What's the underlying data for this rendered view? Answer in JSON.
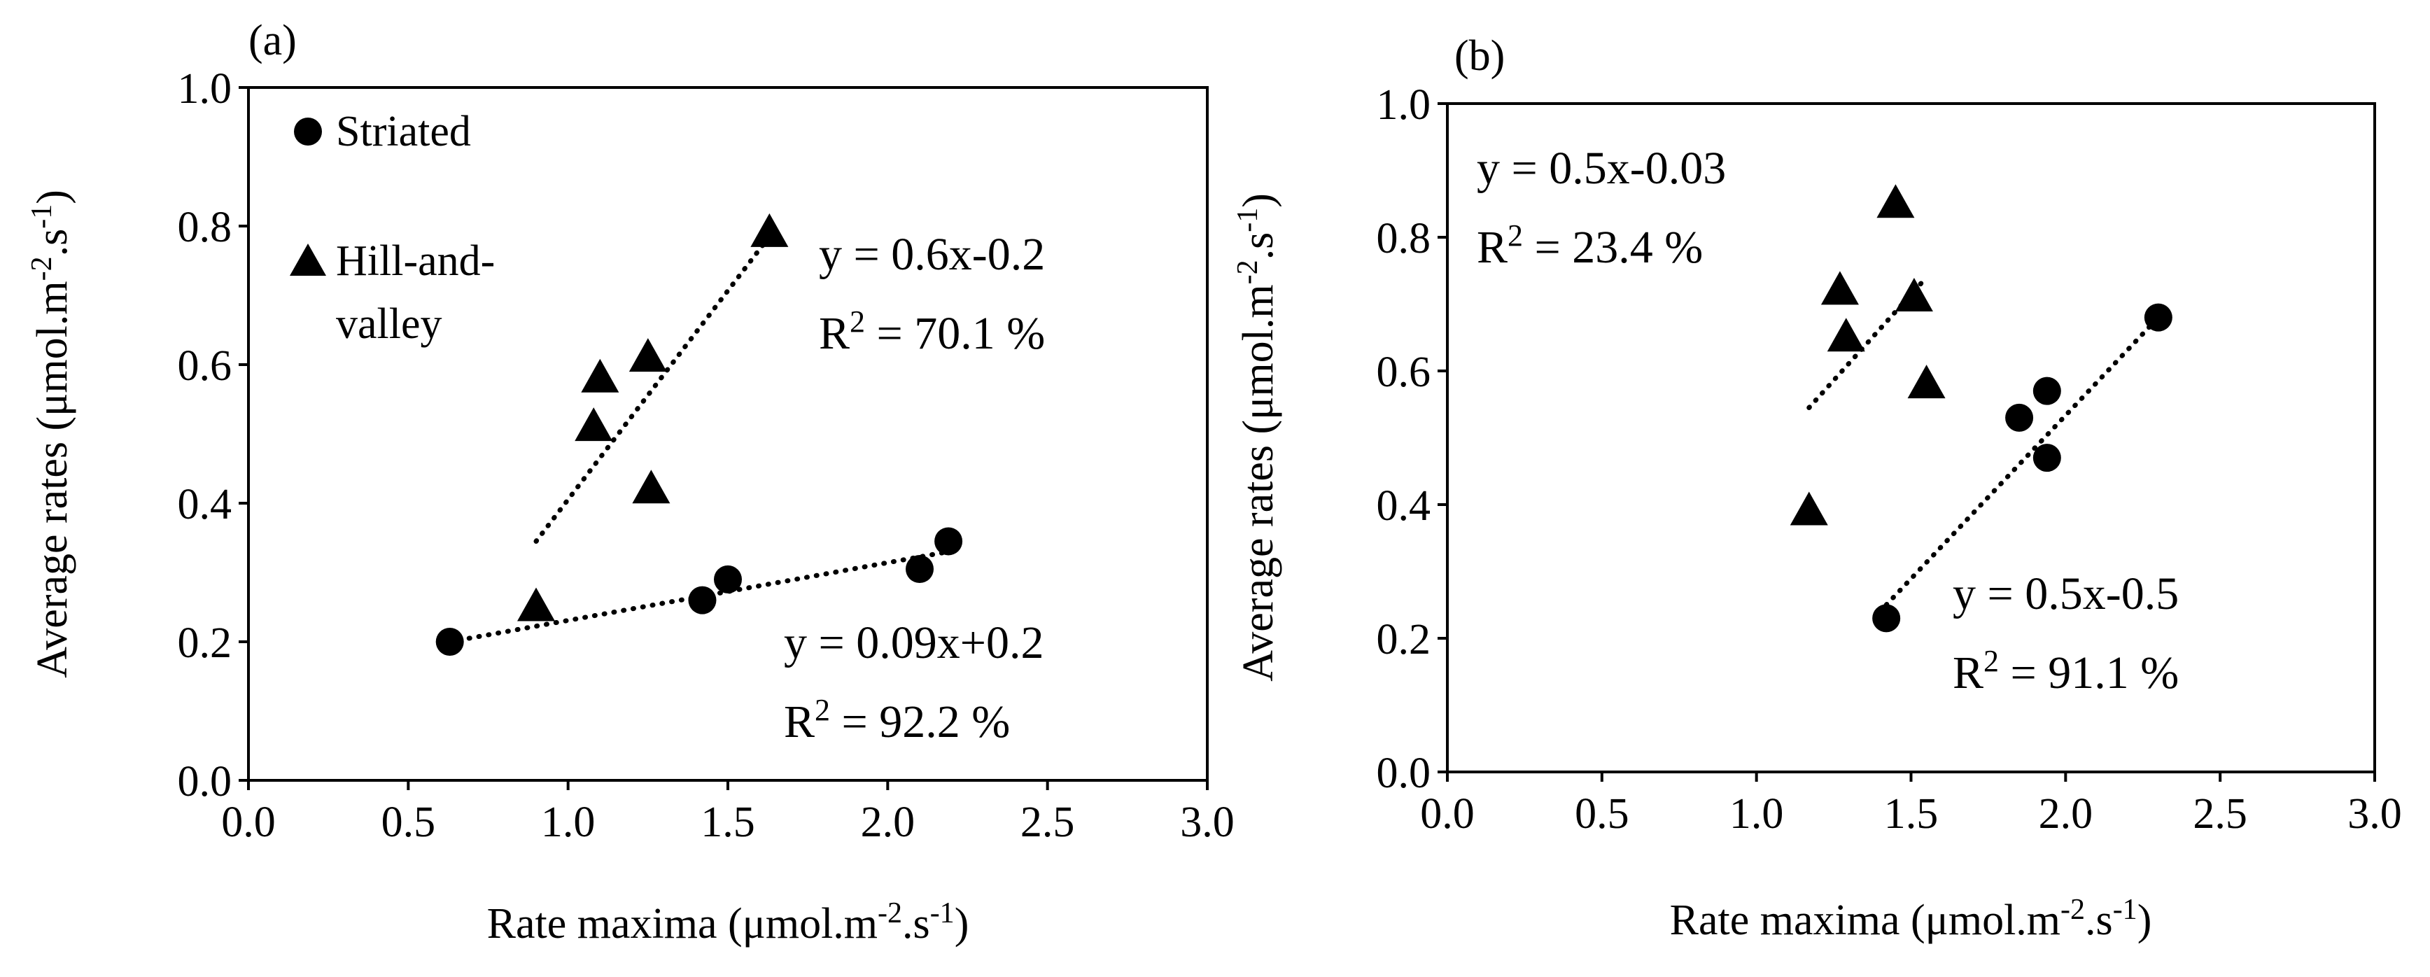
{
  "colors": {
    "ink": "#000000",
    "background": "#ffffff"
  },
  "chart_data": [
    {
      "panel_label": "(a)",
      "type": "scatter",
      "xlabel_main": "Rate maxima (μmol.m",
      "ylabel_main": "Average rates (μmol.m",
      "unit_exp_a": "-2",
      "unit_mid": ".s",
      "unit_exp_b": "-1",
      "unit_close": ")",
      "xlim": [
        0.0,
        3.0
      ],
      "ylim": [
        0.0,
        1.0
      ],
      "xticks": [
        "0.0",
        "0.5",
        "1.0",
        "1.5",
        "2.0",
        "2.5",
        "3.0"
      ],
      "yticks": [
        "0.0",
        "0.2",
        "0.4",
        "0.6",
        "0.8",
        "1.0"
      ],
      "legend": {
        "striated": "Striated",
        "hill_line1": "Hill-and-",
        "hill_line2": "valley"
      },
      "series": [
        {
          "name": "Striated",
          "marker": "circle",
          "points": [
            [
              0.63,
              0.2
            ],
            [
              1.42,
              0.26
            ],
            [
              1.5,
              0.29
            ],
            [
              2.1,
              0.305
            ],
            [
              2.19,
              0.345
            ]
          ],
          "fit": {
            "x": [
              0.63,
              2.19
            ],
            "y": [
              0.2,
              0.33
            ]
          },
          "equation": "y = 0.09x+0.2",
          "r2_prefix": "R",
          "r2_exp": "2",
          "r2_value": " = 92.2 %"
        },
        {
          "name": "Hill-and-valley",
          "marker": "triangle",
          "points": [
            [
              0.9,
              0.25
            ],
            [
              1.08,
              0.51
            ],
            [
              1.1,
              0.58
            ],
            [
              1.25,
              0.61
            ],
            [
              1.26,
              0.42
            ],
            [
              1.63,
              0.79
            ]
          ],
          "fit": {
            "x": [
              0.9,
              1.63
            ],
            "y": [
              0.345,
              0.785
            ]
          },
          "equation": "y = 0.6x-0.2",
          "r2_prefix": "R",
          "r2_exp": "2",
          "r2_value": " = 70.1 %"
        }
      ]
    },
    {
      "panel_label": "(b)",
      "type": "scatter",
      "xlabel_main": "Rate maxima (μmol.m",
      "ylabel_main": "Average rates (μmol.m",
      "unit_exp_a": "-2",
      "unit_mid": ".s",
      "unit_exp_b": "-1",
      "unit_close": ")",
      "xlim": [
        0.0,
        3.0
      ],
      "ylim": [
        0.0,
        1.0
      ],
      "xticks": [
        "0.0",
        "0.5",
        "1.0",
        "1.5",
        "2.0",
        "2.5",
        "3.0"
      ],
      "yticks": [
        "0.0",
        "0.2",
        "0.4",
        "0.6",
        "0.8",
        "1.0"
      ],
      "series": [
        {
          "name": "Hill-and-valley",
          "marker": "triangle",
          "points": [
            [
              1.17,
              0.39
            ],
            [
              1.27,
              0.72
            ],
            [
              1.29,
              0.65
            ],
            [
              1.45,
              0.85
            ],
            [
              1.51,
              0.71
            ],
            [
              1.55,
              0.58
            ]
          ],
          "fit": {
            "x": [
              1.17,
              1.55
            ],
            "y": [
              0.545,
              0.74
            ]
          },
          "equation": "y = 0.5x-0.03",
          "r2_prefix": "R",
          "r2_exp": "2",
          "r2_value": " = 23.4 %"
        },
        {
          "name": "Striated",
          "marker": "circle",
          "points": [
            [
              1.42,
              0.23
            ],
            [
              1.85,
              0.53
            ],
            [
              1.94,
              0.57
            ],
            [
              1.94,
              0.47
            ],
            [
              2.3,
              0.68
            ]
          ],
          "fit": {
            "x": [
              1.42,
              2.3
            ],
            "y": [
              0.25,
              0.68
            ]
          },
          "equation": "y = 0.5x-0.5",
          "r2_prefix": "R",
          "r2_exp": "2",
          "r2_value": " = 91.1 %"
        }
      ]
    }
  ]
}
